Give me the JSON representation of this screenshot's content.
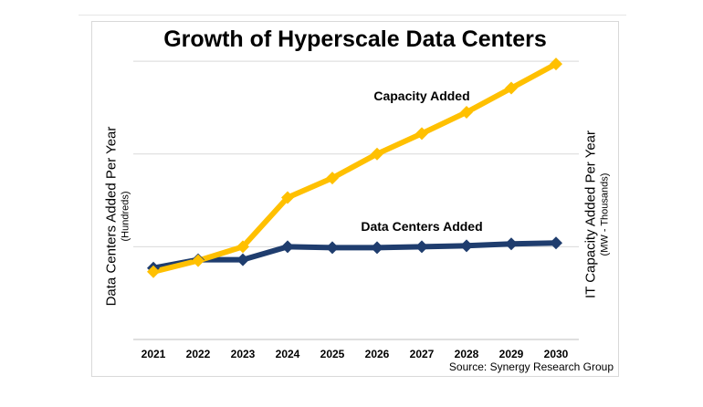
{
  "chart_data": {
    "type": "line",
    "title": "Growth of Hyperscale Data Centers",
    "categories": [
      "2021",
      "2022",
      "2023",
      "2024",
      "2025",
      "2026",
      "2027",
      "2028",
      "2029",
      "2030"
    ],
    "series": [
      {
        "name": "Capacity Added",
        "axis": "right",
        "color": "#ffc000",
        "values": [
          0.73,
          0.85,
          1.0,
          1.53,
          1.74,
          2.0,
          2.22,
          2.45,
          2.71,
          2.97
        ]
      },
      {
        "name": "Data Centers Added",
        "axis": "left",
        "color": "#1f3d6e",
        "values": [
          0.77,
          0.86,
          0.86,
          1.0,
          0.99,
          0.99,
          1.0,
          1.01,
          1.03,
          1.04
        ]
      }
    ],
    "ylim": [
      0,
      3.05
    ],
    "gridlines": [
      1,
      2,
      3
    ],
    "ylabel_left": "Data Centers Added Per Year",
    "ylabel_left_sub": "(Hundreds)",
    "ylabel_right": "IT Capacity Added Per Year",
    "ylabel_right_sub": "(MW - Thousands)",
    "source": "Source: Synergy Research Group"
  }
}
